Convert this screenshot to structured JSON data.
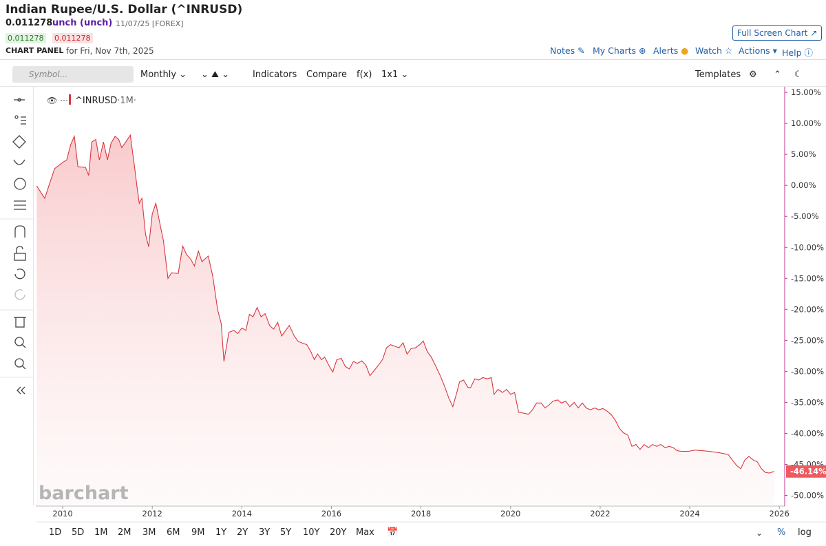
{
  "header": {
    "title": "Indian Rupee/U.S. Dollar (^INRUSD)",
    "price": "0.011278",
    "change": "unch (unch)",
    "date": "11/07/25 [FOREX]",
    "bid": "0.011278",
    "ask": "0.011278",
    "panel_label": "CHART PANEL",
    "panel_date": "for Fri, Nov 7th, 2025",
    "full_screen": "Full Screen Chart"
  },
  "nav": [
    "Notes",
    "My Charts",
    "Alerts",
    "Watch",
    "Actions",
    "Help"
  ],
  "toolbar": {
    "symbol_placeholder": "Symbol...",
    "period": "Monthly",
    "indicators": "Indicators",
    "compare": "Compare",
    "fx": "f(x)",
    "layout": "1x1",
    "templates": "Templates"
  },
  "legend_interval": "·1M·",
  "watermark": "barchart",
  "ranges": [
    "1D",
    "5D",
    "1M",
    "2M",
    "3M",
    "6M",
    "9M",
    "1Y",
    "2Y",
    "3Y",
    "5Y",
    "10Y",
    "20Y",
    "Max"
  ],
  "scale_buttons": [
    "%",
    "log"
  ],
  "chart_data": {
    "type": "line",
    "x": [
      2009.42,
      2009.6,
      2009.69,
      2009.82,
      2010.0,
      2010.09,
      2010.18,
      2010.26,
      2010.34,
      2010.51,
      2010.58,
      2010.65,
      2010.74,
      2010.82,
      2010.91,
      2011.0,
      2011.08,
      2011.17,
      2011.25,
      2011.32,
      2011.42,
      2011.51,
      2011.6,
      2011.66,
      2011.71,
      2011.77,
      2011.85,
      2011.92,
      2012.0,
      2012.08,
      2012.15,
      2012.25,
      2012.35,
      2012.43,
      2012.58,
      2012.68,
      2012.77,
      2012.86,
      2012.94,
      2013.03,
      2013.11,
      2013.25,
      2013.35,
      2013.46,
      2013.54,
      2013.6,
      2013.71,
      2013.82,
      2013.91,
      2014.0,
      2014.09,
      2014.17,
      2014.25,
      2014.34,
      2014.43,
      2014.52,
      2014.62,
      2014.71,
      2014.8,
      2014.89,
      2014.98,
      2015.06,
      2015.17,
      2015.26,
      2015.45,
      2015.54,
      2015.62,
      2015.69,
      2015.78,
      2015.85,
      2015.94,
      2016.03,
      2016.12,
      2016.22,
      2016.31,
      2016.4,
      2016.49,
      2016.58,
      2016.68,
      2016.77,
      2016.86,
      2016.95,
      2017.05,
      2017.14,
      2017.23,
      2017.32,
      2017.51,
      2017.6,
      2017.69,
      2017.78,
      2017.88,
      2017.97,
      2018.05,
      2018.14,
      2018.23,
      2018.32,
      2018.43,
      2018.52,
      2018.62,
      2018.71,
      2018.8,
      2018.86,
      2018.95,
      2019.05,
      2019.11,
      2019.2,
      2019.29,
      2019.38,
      2019.48,
      2019.57,
      2019.63,
      2019.72,
      2019.82,
      2019.91,
      2020.0,
      2020.09,
      2020.18,
      2020.4,
      2020.49,
      2020.58,
      2020.68,
      2020.77,
      2020.86,
      2020.95,
      2021.05,
      2021.14,
      2021.23,
      2021.32,
      2021.42,
      2021.51,
      2021.6,
      2021.69,
      2021.78,
      2021.88,
      2021.97,
      2022.06,
      2022.15,
      2022.25,
      2022.34,
      2022.43,
      2022.52,
      2022.62,
      2022.71,
      2022.8,
      2022.89,
      2022.98,
      2023.08,
      2023.17,
      2023.26,
      2023.35,
      2023.45,
      2023.54,
      2023.63,
      2023.72,
      2023.82,
      2023.97,
      2024.12,
      2024.28,
      2024.43,
      2024.65,
      2024.86,
      2024.95,
      2025.05,
      2025.14,
      2025.23,
      2025.32,
      2025.42,
      2025.51,
      2025.6,
      2025.69,
      2025.78,
      2025.88
    ],
    "series": [
      {
        "name": "^INRUSD",
        "color": "#d9363e",
        "values": [
          -0.1,
          -2.1,
          -0.1,
          2.7,
          3.7,
          4.1,
          6.6,
          7.9,
          3.0,
          2.9,
          1.6,
          7.0,
          7.4,
          4.1,
          7.0,
          4.1,
          6.8,
          7.9,
          7.4,
          6.1,
          7.1,
          8.1,
          3.2,
          -0.3,
          -2.9,
          -2.1,
          -7.9,
          -9.9,
          -4.6,
          -2.9,
          -5.4,
          -9.0,
          -15.0,
          -14.1,
          -14.2,
          -9.8,
          -11.2,
          -11.9,
          -13.0,
          -10.6,
          -12.3,
          -11.4,
          -14.6,
          -20.1,
          -22.3,
          -28.4,
          -23.7,
          -23.4,
          -23.9,
          -23.0,
          -23.4,
          -20.8,
          -21.2,
          -19.7,
          -21.2,
          -20.7,
          -22.6,
          -23.2,
          -22.1,
          -24.3,
          -23.4,
          -22.6,
          -24.3,
          -25.2,
          -25.7,
          -26.8,
          -28.1,
          -27.2,
          -28.1,
          -27.7,
          -29.0,
          -30.1,
          -28.1,
          -27.9,
          -29.2,
          -29.6,
          -28.4,
          -28.7,
          -28.3,
          -29.0,
          -30.7,
          -29.9,
          -29.0,
          -28.1,
          -26.2,
          -25.7,
          -26.2,
          -25.4,
          -27.2,
          -26.3,
          -26.2,
          -25.7,
          -25.1,
          -26.8,
          -27.7,
          -29.0,
          -30.7,
          -32.3,
          -34.3,
          -35.7,
          -33.4,
          -31.7,
          -31.4,
          -32.6,
          -32.6,
          -31.2,
          -31.4,
          -31.0,
          -31.2,
          -31.0,
          -33.7,
          -32.9,
          -33.4,
          -32.9,
          -33.7,
          -33.4,
          -36.6,
          -36.9,
          -36.2,
          -35.1,
          -35.1,
          -35.9,
          -35.4,
          -34.8,
          -34.6,
          -35.1,
          -34.8,
          -35.7,
          -35.0,
          -35.9,
          -35.1,
          -35.9,
          -36.2,
          -35.9,
          -36.2,
          -36.0,
          -36.4,
          -37.0,
          -37.9,
          -39.2,
          -39.9,
          -40.3,
          -42.1,
          -41.8,
          -42.6,
          -41.8,
          -42.3,
          -41.8,
          -42.1,
          -41.8,
          -42.3,
          -42.1,
          -42.3,
          -42.8,
          -42.9,
          -42.9,
          -42.7,
          -42.8,
          -42.9,
          -43.1,
          -43.4,
          -44.3,
          -45.2,
          -45.7,
          -44.3,
          -43.7,
          -44.3,
          -44.6,
          -45.7,
          -46.3,
          -46.4,
          -46.14
        ]
      }
    ],
    "last_value": {
      "value": -46.14,
      "label": "-46.14%"
    },
    "xlim": [
      2009.4,
      2026.12
    ],
    "xticks": [
      2010,
      2012,
      2014,
      2016,
      2018,
      2020,
      2022,
      2024,
      2026
    ],
    "ylim": [
      -51.5,
      15.9
    ],
    "yticks": [
      {
        "value": 15,
        "label": "15.00%"
      },
      {
        "value": 10,
        "label": "10.00%"
      },
      {
        "value": 5,
        "label": "5.00%"
      },
      {
        "value": 0,
        "label": "0.00%"
      },
      {
        "value": -5,
        "label": "-5.00%"
      },
      {
        "value": -10,
        "label": "-10.00%"
      },
      {
        "value": -15,
        "label": "-15.00%"
      },
      {
        "value": -20,
        "label": "-20.00%"
      },
      {
        "value": -25,
        "label": "-25.00%"
      },
      {
        "value": -30,
        "label": "-30.00%"
      },
      {
        "value": -35,
        "label": "-35.00%"
      },
      {
        "value": -40,
        "label": "-40.00%"
      },
      {
        "value": -45,
        "label": "-45.00%"
      },
      {
        "value": -50,
        "label": "-50.00%"
      }
    ],
    "grid": false
  }
}
